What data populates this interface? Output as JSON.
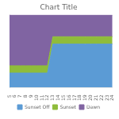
{
  "chart_data": {
    "type": "area",
    "title": "Chart Title",
    "x": [
      5,
      6,
      7,
      8,
      9,
      10,
      11,
      12,
      13,
      14,
      15,
      16,
      17,
      18,
      19,
      20,
      21,
      22,
      23,
      24
    ],
    "series": [
      {
        "name": "Sunset Off",
        "color": "#5b9bd5",
        "values": [
          2,
          2,
          2,
          2,
          2,
          2,
          2,
          2,
          6,
          6,
          6,
          6,
          6,
          6,
          6,
          6,
          6,
          6,
          6,
          6
        ]
      },
      {
        "name": "Sunset",
        "color": "#8fbc3b",
        "values": [
          1,
          1,
          1,
          1,
          1,
          1,
          1,
          1,
          1,
          1,
          1,
          1,
          1,
          1,
          1,
          1,
          1,
          1,
          1,
          1
        ]
      },
      {
        "name": "Dawn",
        "color": "#8064a2",
        "values": [
          7,
          7,
          7,
          7,
          7,
          7,
          7,
          7,
          3,
          3,
          3,
          3,
          3,
          3,
          3,
          3,
          3,
          3,
          3,
          3
        ]
      }
    ],
    "xlim": [
      5,
      24
    ],
    "xticks": [
      5,
      6,
      7,
      8,
      9,
      10,
      11,
      12,
      13,
      14,
      15,
      16,
      17,
      18,
      19,
      20,
      21,
      22,
      23,
      24
    ],
    "ylim": [
      0,
      10
    ],
    "stacked": true,
    "grid": false,
    "legend": "bottom",
    "tick_labels": "x"
  }
}
